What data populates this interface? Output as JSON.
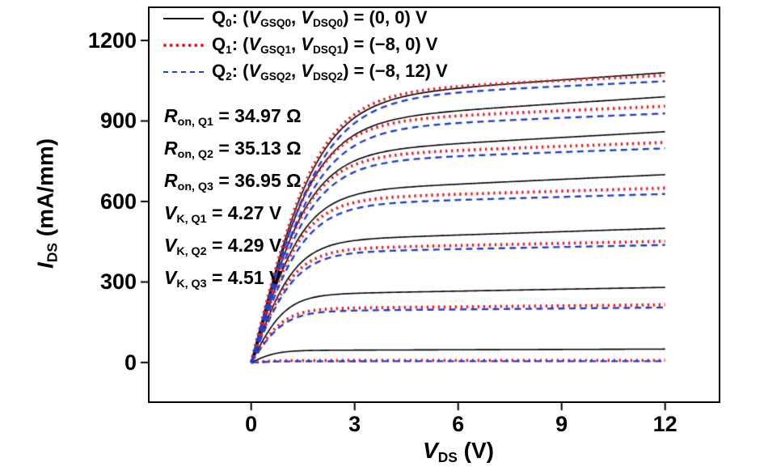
{
  "figure": {
    "background": "#ffffff",
    "frame_color": "#000000"
  },
  "legend": {
    "items": [
      {
        "id": "q0",
        "line_style": "solid",
        "color": "#000000",
        "segments": [
          {
            "t": "Q"
          },
          {
            "t": "0",
            "s": "sub"
          },
          {
            "t": ": ("
          },
          {
            "t": "V",
            "s": "it"
          },
          {
            "t": "GSQ0",
            "s": "sub"
          },
          {
            "t": ", "
          },
          {
            "t": "V",
            "s": "it"
          },
          {
            "t": "DSQ0",
            "s": "sub"
          },
          {
            "t": ") = (0, 0) V"
          }
        ]
      },
      {
        "id": "q1",
        "line_style": "dotted",
        "color": "#ed1c24",
        "segments": [
          {
            "t": "Q"
          },
          {
            "t": "1",
            "s": "sub"
          },
          {
            "t": ": ("
          },
          {
            "t": "V",
            "s": "it"
          },
          {
            "t": "GSQ1",
            "s": "sub"
          },
          {
            "t": ", "
          },
          {
            "t": "V",
            "s": "it"
          },
          {
            "t": "DSQ1",
            "s": "sub"
          },
          {
            "t": ") = (−8, 0) V"
          }
        ]
      },
      {
        "id": "q2",
        "line_style": "dashed",
        "color": "#1f3fd4",
        "segments": [
          {
            "t": "Q"
          },
          {
            "t": "2",
            "s": "sub"
          },
          {
            "t": ": ("
          },
          {
            "t": "V",
            "s": "it"
          },
          {
            "t": "GSQ2",
            "s": "sub"
          },
          {
            "t": ", "
          },
          {
            "t": "V",
            "s": "it"
          },
          {
            "t": "DSQ2",
            "s": "sub"
          },
          {
            "t": ") = (−8, 12) V"
          }
        ]
      }
    ]
  },
  "annotations": [
    {
      "id": "ron-q1",
      "segments": [
        {
          "t": "R",
          "s": "it"
        },
        {
          "t": "on, Q1",
          "s": "sub"
        },
        {
          "t": " = 34.97 Ω"
        }
      ]
    },
    {
      "id": "ron-q2",
      "segments": [
        {
          "t": "R",
          "s": "it"
        },
        {
          "t": "on, Q2",
          "s": "sub"
        },
        {
          "t": " = 35.13 Ω"
        }
      ]
    },
    {
      "id": "ron-q3",
      "segments": [
        {
          "t": "R",
          "s": "it"
        },
        {
          "t": "on, Q3",
          "s": "sub"
        },
        {
          "t": " = 36.95 Ω"
        }
      ]
    },
    {
      "id": "vk-q1",
      "segments": [
        {
          "t": "V",
          "s": "it"
        },
        {
          "t": "K, Q1",
          "s": "sub"
        },
        {
          "t": " = 4.27 V"
        }
      ]
    },
    {
      "id": "vk-q2",
      "segments": [
        {
          "t": "V",
          "s": "it"
        },
        {
          "t": "K, Q2",
          "s": "sub"
        },
        {
          "t": " = 4.29 V"
        }
      ]
    },
    {
      "id": "vk-q3",
      "segments": [
        {
          "t": "V",
          "s": "it"
        },
        {
          "t": "K, Q3",
          "s": "sub"
        },
        {
          "t": " = 4.51 V"
        }
      ]
    }
  ],
  "axes": {
    "x": {
      "label_segments": [
        {
          "t": "V",
          "s": "it"
        },
        {
          "t": "DS",
          "s": "sub"
        },
        {
          "t": " (V)"
        }
      ],
      "tick_labels": [
        "0",
        "3",
        "6",
        "9",
        "12"
      ]
    },
    "y": {
      "label_segments": [
        {
          "t": "I",
          "s": "it"
        },
        {
          "t": "DS",
          "s": "sub"
        },
        {
          "t": " (mA/mm)"
        }
      ],
      "tick_labels": [
        "0",
        "300",
        "600",
        "900",
        "1200"
      ]
    }
  },
  "chart_data": {
    "type": "line",
    "title": "",
    "xlabel": "V_DS (V)",
    "ylabel": "I_DS (mA/mm)",
    "xlim": [
      0,
      12
    ],
    "ylim": [
      0,
      1200
    ],
    "xticks": [
      0,
      3,
      6,
      9,
      12
    ],
    "yticks": [
      0,
      300,
      600,
      900,
      1200
    ],
    "grid": false,
    "legend_position": "top-left",
    "series": [
      {
        "name": "Q0",
        "bias": "(VGSQ0, VDSQ0) = (0, 0) V",
        "color": "#000000",
        "line_style": "solid",
        "knee_voltage_V": 4.27,
        "r_on_ohm": 34.97,
        "saturation_currents_mA_per_mm": [
          1080,
          990,
          860,
          700,
          500,
          280,
          50
        ]
      },
      {
        "name": "Q1",
        "bias": "(VGSQ1, VDSQ1) = (−8, 0) V",
        "color": "#ed1c24",
        "line_style": "dotted",
        "knee_voltage_V": 4.29,
        "r_on_ohm": 35.13,
        "saturation_currents_mA_per_mm": [
          1070,
          955,
          820,
          650,
          452,
          215,
          8
        ]
      },
      {
        "name": "Q2",
        "bias": "(VGSQ2, VDSQ2) = (−8, 12) V",
        "color": "#1f3fd4",
        "line_style": "dashed",
        "knee_voltage_V": 4.51,
        "r_on_ohm": 36.95,
        "saturation_currents_mA_per_mm": [
          1048,
          928,
          798,
          628,
          438,
          205,
          5
        ]
      }
    ],
    "measurements": {
      "R_on_ohm": {
        "Q1": 34.97,
        "Q2": 35.13,
        "Q3": 36.95
      },
      "V_K_V": {
        "Q1": 4.27,
        "Q2": 4.29,
        "Q3": 4.51
      }
    },
    "model_note": "FET output characteristic families: 7 curves per series from VDS = 0 to 12 V, rising linearly then saturating near the listed knee voltage at the listed saturation currents."
  }
}
